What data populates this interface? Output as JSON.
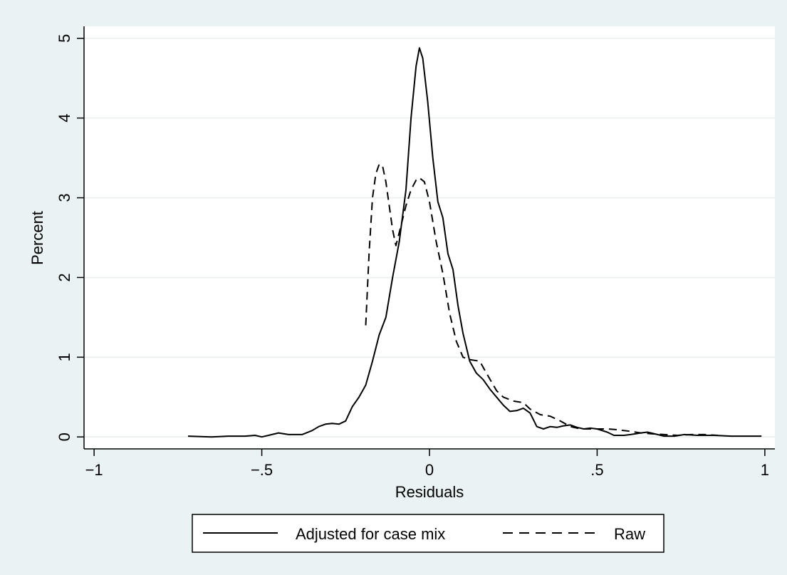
{
  "chart_data": {
    "type": "line",
    "title": "",
    "xlabel": "Residuals",
    "ylabel": "Percent",
    "xlim": [
      -1.03,
      1.03
    ],
    "ylim": [
      -0.15,
      5.15
    ],
    "xticks": [
      -1,
      -0.5,
      0,
      0.5,
      1
    ],
    "xtick_labels": [
      "−1",
      "−.5",
      "0",
      ".5",
      "1"
    ],
    "yticks": [
      0,
      1,
      2,
      3,
      4,
      5
    ],
    "ytick_labels": [
      "0",
      "1",
      "2",
      "3",
      "4",
      "5"
    ],
    "grid": "horizontal",
    "legend_position": "bottom",
    "series": [
      {
        "name": "Adjusted for case mix",
        "dash": "solid",
        "color": "#000000",
        "points": [
          [
            -0.72,
            0.01
          ],
          [
            -0.65,
            0.0
          ],
          [
            -0.6,
            0.01
          ],
          [
            -0.55,
            0.01
          ],
          [
            -0.52,
            0.02
          ],
          [
            -0.5,
            0.0
          ],
          [
            -0.47,
            0.03
          ],
          [
            -0.45,
            0.05
          ],
          [
            -0.42,
            0.03
          ],
          [
            -0.38,
            0.03
          ],
          [
            -0.35,
            0.08
          ],
          [
            -0.33,
            0.13
          ],
          [
            -0.31,
            0.16
          ],
          [
            -0.29,
            0.17
          ],
          [
            -0.27,
            0.16
          ],
          [
            -0.25,
            0.2
          ],
          [
            -0.23,
            0.38
          ],
          [
            -0.21,
            0.5
          ],
          [
            -0.19,
            0.65
          ],
          [
            -0.17,
            0.95
          ],
          [
            -0.15,
            1.28
          ],
          [
            -0.13,
            1.5
          ],
          [
            -0.11,
            2.0
          ],
          [
            -0.09,
            2.45
          ],
          [
            -0.07,
            3.1
          ],
          [
            -0.055,
            4.0
          ],
          [
            -0.04,
            4.65
          ],
          [
            -0.03,
            4.88
          ],
          [
            -0.02,
            4.75
          ],
          [
            -0.005,
            4.2
          ],
          [
            0.01,
            3.5
          ],
          [
            0.025,
            2.95
          ],
          [
            0.04,
            2.75
          ],
          [
            0.055,
            2.3
          ],
          [
            0.07,
            2.1
          ],
          [
            0.085,
            1.65
          ],
          [
            0.1,
            1.3
          ],
          [
            0.12,
            0.95
          ],
          [
            0.14,
            0.8
          ],
          [
            0.16,
            0.72
          ],
          [
            0.18,
            0.6
          ],
          [
            0.2,
            0.5
          ],
          [
            0.22,
            0.4
          ],
          [
            0.24,
            0.32
          ],
          [
            0.26,
            0.33
          ],
          [
            0.28,
            0.36
          ],
          [
            0.3,
            0.3
          ],
          [
            0.32,
            0.13
          ],
          [
            0.34,
            0.1
          ],
          [
            0.36,
            0.13
          ],
          [
            0.38,
            0.12
          ],
          [
            0.4,
            0.14
          ],
          [
            0.42,
            0.15
          ],
          [
            0.44,
            0.12
          ],
          [
            0.46,
            0.1
          ],
          [
            0.48,
            0.11
          ],
          [
            0.5,
            0.1
          ],
          [
            0.53,
            0.06
          ],
          [
            0.55,
            0.02
          ],
          [
            0.58,
            0.02
          ],
          [
            0.6,
            0.03
          ],
          [
            0.63,
            0.05
          ],
          [
            0.65,
            0.06
          ],
          [
            0.68,
            0.03
          ],
          [
            0.7,
            0.01
          ],
          [
            0.73,
            0.01
          ],
          [
            0.76,
            0.03
          ],
          [
            0.8,
            0.02
          ],
          [
            0.85,
            0.02
          ],
          [
            0.9,
            0.01
          ],
          [
            0.95,
            0.01
          ],
          [
            0.99,
            0.01
          ]
        ]
      },
      {
        "name": "Raw",
        "dash": "dashed",
        "color": "#000000",
        "points": [
          [
            -0.19,
            1.4
          ],
          [
            -0.18,
            2.3
          ],
          [
            -0.17,
            3.0
          ],
          [
            -0.16,
            3.3
          ],
          [
            -0.15,
            3.42
          ],
          [
            -0.14,
            3.4
          ],
          [
            -0.13,
            3.2
          ],
          [
            -0.12,
            2.9
          ],
          [
            -0.11,
            2.6
          ],
          [
            -0.1,
            2.4
          ],
          [
            -0.085,
            2.65
          ],
          [
            -0.07,
            2.9
          ],
          [
            -0.055,
            3.1
          ],
          [
            -0.04,
            3.22
          ],
          [
            -0.03,
            3.25
          ],
          [
            -0.015,
            3.2
          ],
          [
            0.0,
            2.95
          ],
          [
            0.02,
            2.45
          ],
          [
            0.04,
            2.05
          ],
          [
            0.06,
            1.55
          ],
          [
            0.08,
            1.2
          ],
          [
            0.1,
            1.0
          ],
          [
            0.12,
            0.97
          ],
          [
            0.15,
            0.95
          ],
          [
            0.17,
            0.8
          ],
          [
            0.2,
            0.58
          ],
          [
            0.22,
            0.5
          ],
          [
            0.25,
            0.45
          ],
          [
            0.28,
            0.43
          ],
          [
            0.3,
            0.35
          ],
          [
            0.33,
            0.28
          ],
          [
            0.36,
            0.26
          ],
          [
            0.39,
            0.2
          ],
          [
            0.42,
            0.13
          ],
          [
            0.45,
            0.1
          ],
          [
            0.48,
            0.1
          ],
          [
            0.5,
            0.1
          ],
          [
            0.53,
            0.1
          ],
          [
            0.56,
            0.09
          ],
          [
            0.6,
            0.07
          ],
          [
            0.63,
            0.05
          ],
          [
            0.66,
            0.04
          ],
          [
            0.7,
            0.03
          ],
          [
            0.74,
            0.02
          ],
          [
            0.78,
            0.03
          ],
          [
            0.82,
            0.03
          ],
          [
            0.86,
            0.02
          ]
        ]
      }
    ]
  }
}
